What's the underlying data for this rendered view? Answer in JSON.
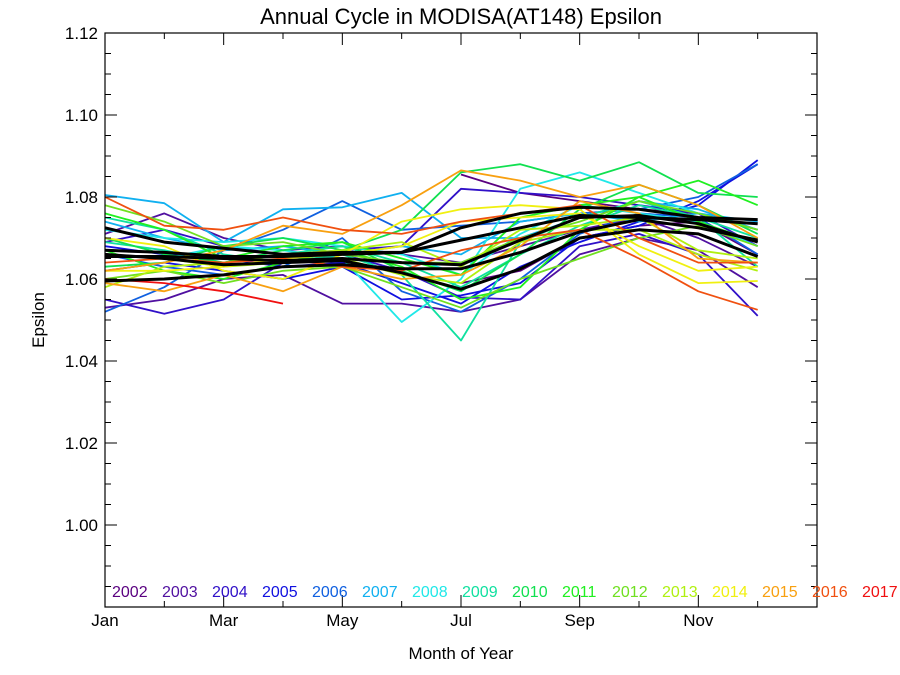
{
  "chart_data": {
    "type": "line",
    "title": "Annual Cycle in MODISA(AT148) Epsilon",
    "xlabel": "Month of Year",
    "ylabel": "Epsilon",
    "xlim": [
      1,
      13
    ],
    "ylim": [
      0.98,
      1.12
    ],
    "x_ticks": [
      {
        "value": 1,
        "label": "Jan"
      },
      {
        "value": 3,
        "label": "Mar"
      },
      {
        "value": 5,
        "label": "May"
      },
      {
        "value": 7,
        "label": "Jul"
      },
      {
        "value": 9,
        "label": "Sep"
      },
      {
        "value": 11,
        "label": "Nov"
      }
    ],
    "y_ticks": [
      {
        "value": 1.0,
        "label": "1.00"
      },
      {
        "value": 1.02,
        "label": "1.02"
      },
      {
        "value": 1.04,
        "label": "1.04"
      },
      {
        "value": 1.06,
        "label": "1.06"
      },
      {
        "value": 1.08,
        "label": "1.08"
      },
      {
        "value": 1.1,
        "label": "1.10"
      },
      {
        "value": 1.12,
        "label": "1.12"
      }
    ],
    "months": [
      1,
      2,
      3,
      4,
      5,
      6,
      7,
      8,
      9,
      10,
      11,
      12
    ],
    "legend": {
      "placement": "bottom inside plot"
    },
    "series": [
      {
        "name": "2002",
        "color": "#5a0080",
        "values": [
          null,
          null,
          null,
          null,
          null,
          null,
          1.0855,
          1.081,
          1.079,
          1.077,
          1.076,
          1.072
        ]
      },
      {
        "name": "2002",
        "color": "#5a0080",
        "values": [
          null,
          null,
          null,
          null,
          null,
          null,
          1.059,
          1.062,
          1.07,
          1.073,
          1.074,
          1.066
        ]
      },
      {
        "name": "2003",
        "color": "#5010a0",
        "values": [
          1.071,
          1.076,
          1.07,
          1.067,
          1.068,
          1.066,
          1.064,
          1.068,
          1.072,
          1.075,
          1.07,
          1.063
        ]
      },
      {
        "name": "2003",
        "color": "#5010a0",
        "values": [
          1.053,
          1.055,
          1.06,
          1.061,
          1.054,
          1.054,
          1.052,
          1.055,
          1.066,
          1.07,
          1.067,
          1.058
        ]
      },
      {
        "name": "2004",
        "color": "#3010c8",
        "values": [
          1.055,
          1.0515,
          1.055,
          1.064,
          1.066,
          1.062,
          1.0555,
          1.055,
          1.068,
          1.071,
          1.066,
          1.051
        ]
      },
      {
        "name": "2004",
        "color": "#3010c8",
        "values": [
          1.069,
          1.072,
          1.068,
          1.066,
          1.067,
          1.068,
          1.082,
          1.081,
          1.08,
          1.078,
          1.076,
          1.068
        ]
      },
      {
        "name": "2005",
        "color": "#1010e0",
        "values": [
          1.068,
          1.066,
          1.065,
          1.063,
          1.064,
          1.059,
          1.054,
          1.063,
          1.069,
          1.074,
          1.078,
          1.089
        ]
      },
      {
        "name": "2005",
        "color": "#1010e0",
        "values": [
          1.062,
          1.064,
          1.062,
          1.06,
          1.063,
          1.055,
          1.056,
          1.059,
          1.07,
          1.073,
          1.079,
          1.088
        ]
      },
      {
        "name": "2006",
        "color": "#1060e0",
        "values": [
          1.052,
          1.058,
          1.067,
          1.072,
          1.079,
          1.072,
          1.073,
          1.074,
          1.076,
          1.077,
          1.08,
          1.088
        ]
      },
      {
        "name": "2006",
        "color": "#1060e0",
        "values": [
          1.066,
          1.063,
          1.061,
          1.063,
          1.07,
          1.057,
          1.052,
          1.06,
          1.071,
          1.076,
          1.075,
          1.066
        ]
      },
      {
        "name": "2007",
        "color": "#10b0f0",
        "values": [
          1.0805,
          1.0785,
          1.069,
          1.077,
          1.0775,
          1.081,
          1.07,
          1.07,
          1.075,
          1.079,
          1.077,
          1.072
        ]
      },
      {
        "name": "2007",
        "color": "#10b0f0",
        "values": [
          1.074,
          1.07,
          1.067,
          1.068,
          1.066,
          1.068,
          1.066,
          1.074,
          1.076,
          1.074,
          1.076,
          1.074
        ]
      },
      {
        "name": "2008",
        "color": "#20e8e8",
        "values": [
          1.066,
          1.065,
          1.068,
          1.067,
          1.065,
          1.0495,
          1.06,
          1.082,
          1.086,
          1.081,
          1.076,
          1.072
        ]
      },
      {
        "name": "2008",
        "color": "#20e8e8",
        "values": [
          1.072,
          1.07,
          1.069,
          1.07,
          1.068,
          1.066,
          1.061,
          1.071,
          1.078,
          1.076,
          1.074,
          1.068
        ]
      },
      {
        "name": "2009",
        "color": "#10e0a0",
        "values": [
          1.075,
          1.072,
          1.066,
          1.064,
          1.066,
          1.061,
          1.045,
          1.069,
          1.075,
          1.079,
          1.075,
          1.063
        ]
      },
      {
        "name": "2009",
        "color": "#10e0a0",
        "values": [
          1.069,
          1.067,
          1.064,
          1.066,
          1.068,
          1.064,
          1.058,
          1.066,
          1.073,
          1.078,
          1.075,
          1.07
        ]
      },
      {
        "name": "2010",
        "color": "#10e050",
        "values": [
          1.063,
          1.064,
          1.068,
          1.07,
          1.067,
          1.072,
          1.086,
          1.088,
          1.084,
          1.0885,
          1.081,
          1.08
        ]
      },
      {
        "name": "2010",
        "color": "#10e050",
        "values": [
          1.07,
          1.066,
          1.064,
          1.067,
          1.069,
          1.062,
          1.057,
          1.066,
          1.077,
          1.083,
          1.078,
          1.071
        ]
      },
      {
        "name": "2011",
        "color": "#20f020",
        "values": [
          1.076,
          1.072,
          1.065,
          1.068,
          1.069,
          1.065,
          1.061,
          1.075,
          1.078,
          1.08,
          1.084,
          1.078
        ]
      },
      {
        "name": "2011",
        "color": "#20f020",
        "values": [
          1.067,
          1.062,
          1.06,
          1.064,
          1.067,
          1.063,
          1.055,
          1.058,
          1.072,
          1.08,
          1.074,
          1.069
        ]
      },
      {
        "name": "2012",
        "color": "#70e020",
        "values": [
          1.078,
          1.074,
          1.068,
          1.069,
          1.066,
          1.064,
          1.064,
          1.07,
          1.074,
          1.079,
          1.076,
          1.072
        ]
      },
      {
        "name": "2012",
        "color": "#70e020",
        "values": [
          1.06,
          1.062,
          1.059,
          1.062,
          1.063,
          1.058,
          1.053,
          1.06,
          1.065,
          1.07,
          1.073,
          1.068
        ]
      },
      {
        "name": "2013",
        "color": "#b0f010",
        "values": [
          1.058,
          1.063,
          1.064,
          1.066,
          1.067,
          1.069,
          1.063,
          1.072,
          1.073,
          1.075,
          1.067,
          1.065
        ]
      },
      {
        "name": "2013",
        "color": "#b0f010",
        "values": [
          1.066,
          1.065,
          1.063,
          1.064,
          1.065,
          1.061,
          1.059,
          1.069,
          1.072,
          1.072,
          1.066,
          1.062
        ]
      },
      {
        "name": "2014",
        "color": "#f0f010",
        "values": [
          1.07,
          1.068,
          1.062,
          1.06,
          1.066,
          1.074,
          1.077,
          1.078,
          1.077,
          1.066,
          1.059,
          1.0595
        ]
      },
      {
        "name": "2014",
        "color": "#f0f010",
        "values": [
          1.062,
          1.062,
          1.063,
          1.065,
          1.066,
          1.068,
          1.074,
          1.075,
          1.076,
          1.068,
          1.062,
          1.063
        ]
      },
      {
        "name": "2015",
        "color": "#f8a010",
        "values": [
          1.062,
          1.064,
          1.067,
          1.073,
          1.071,
          1.078,
          1.0865,
          1.084,
          1.08,
          1.083,
          1.078,
          1.07
        ]
      },
      {
        "name": "2015",
        "color": "#f8a010",
        "values": [
          1.059,
          1.057,
          1.061,
          1.057,
          1.063,
          1.06,
          1.061,
          1.068,
          1.079,
          1.076,
          1.065,
          1.064
        ]
      },
      {
        "name": "2016",
        "color": "#f05010",
        "values": [
          1.08,
          1.073,
          1.072,
          1.075,
          1.072,
          1.071,
          1.074,
          1.076,
          1.078,
          1.07,
          1.064,
          1.064
        ]
      },
      {
        "name": "2016",
        "color": "#f05010",
        "values": [
          1.064,
          1.065,
          1.064,
          1.065,
          1.063,
          1.062,
          1.067,
          1.07,
          1.072,
          1.065,
          1.057,
          1.0525
        ]
      },
      {
        "name": "2017",
        "color": "#f01010",
        "values": [
          1.06,
          1.059,
          1.057,
          1.054,
          null,
          null,
          null,
          null,
          null,
          null,
          null,
          null
        ]
      },
      {
        "color": "#000000",
        "width": 3,
        "values": [
          1.0595,
          1.06,
          1.061,
          1.063,
          1.0635,
          1.0625,
          1.0625,
          1.0665,
          1.0715,
          1.0745,
          1.0725,
          1.0695
        ]
      },
      {
        "color": "#000000",
        "width": 3,
        "values": [
          1.066,
          1.065,
          1.0635,
          1.064,
          1.0645,
          1.0615,
          1.0575,
          1.0625,
          1.07,
          1.072,
          1.071,
          1.0655
        ]
      },
      {
        "color": "#000000",
        "width": 3,
        "values": [
          1.0725,
          1.069,
          1.0675,
          1.066,
          1.0665,
          1.0665,
          1.0695,
          1.0725,
          1.0755,
          1.075,
          1.0745,
          1.0735
        ]
      },
      {
        "color": "#000000",
        "width": 3,
        "values": [
          1.067,
          1.0665,
          1.0655,
          1.0655,
          1.066,
          1.0665,
          1.0725,
          1.076,
          1.0775,
          1.077,
          1.075,
          1.0745
        ]
      },
      {
        "color": "#000000",
        "width": 3,
        "values": [
          1.0655,
          1.0655,
          1.065,
          1.0645,
          1.065,
          1.064,
          1.0635,
          1.0695,
          1.075,
          1.0755,
          1.0735,
          1.069
        ]
      }
    ]
  }
}
